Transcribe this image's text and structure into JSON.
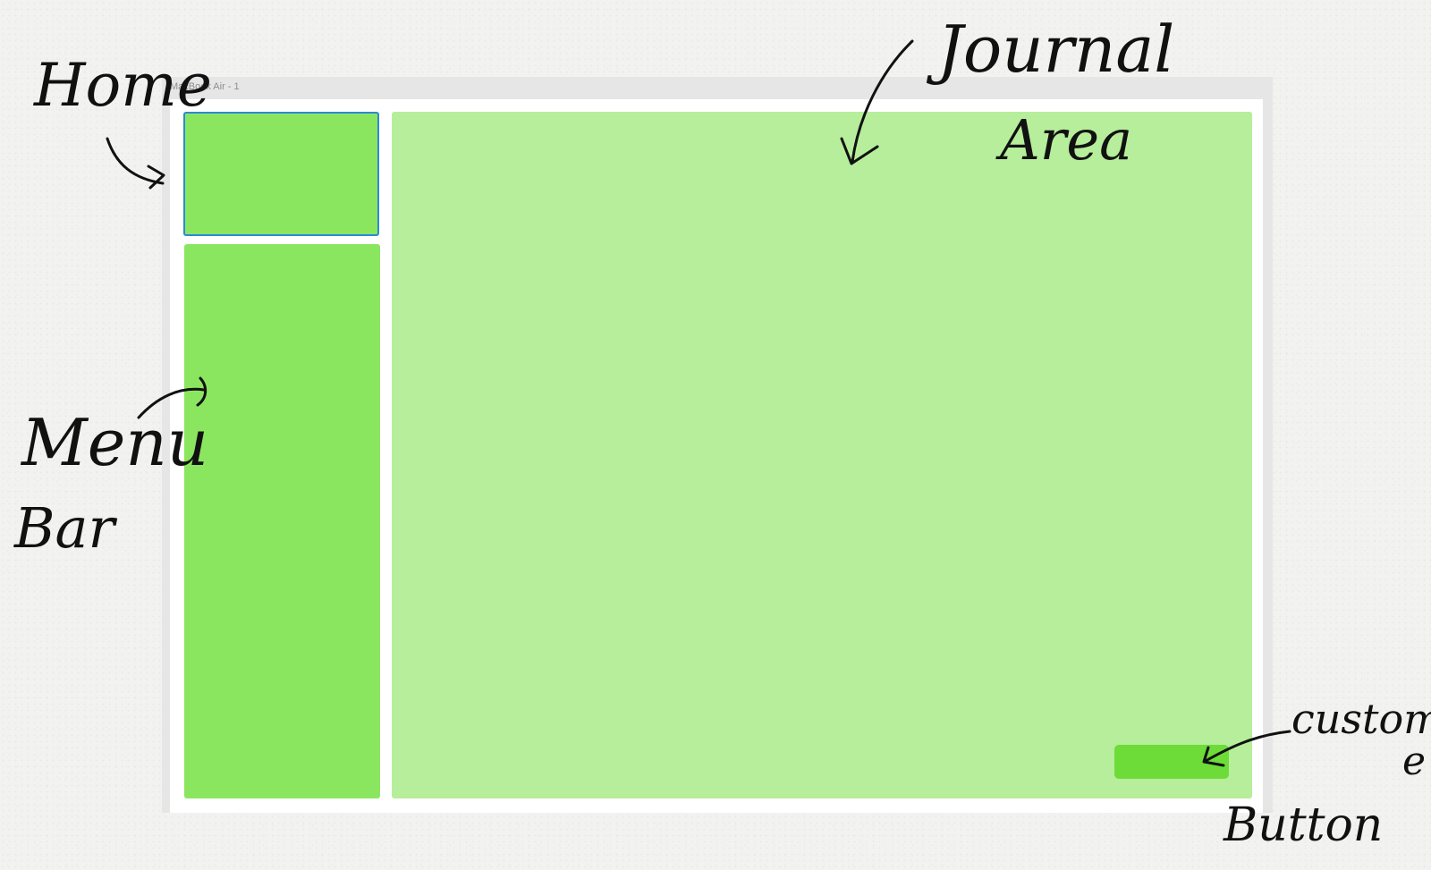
{
  "frame": {
    "label": "MacBook Air - 1"
  },
  "annotations": {
    "home": "Home",
    "journal_line1": "Journal",
    "journal_line2": "Area",
    "menu_line1": "Menu",
    "menu_line2": "Bar",
    "customize_line1": "customiz",
    "customize_line2": "e",
    "customize_line3": "Button"
  },
  "colors": {
    "home_box": "#8be65f",
    "menu_bar": "#8be65f",
    "journal_area": "#b6ee9b",
    "customize_button": "#6ddc38",
    "selection_border": "#2d88d8"
  }
}
